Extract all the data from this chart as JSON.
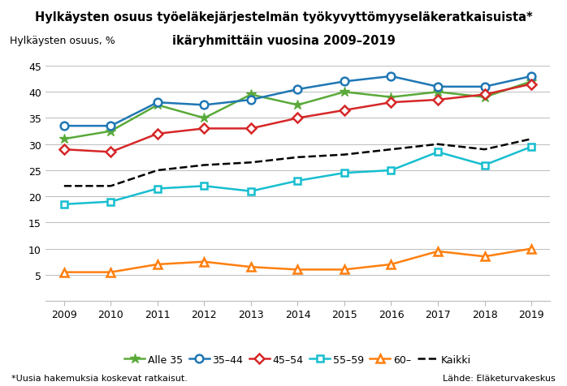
{
  "title_line1": "Hylkäysten osuus työeläkejärjestelmän työkyvyttömyyseläkeratkaisuista*",
  "title_line2": "ikäryhmittäin vuosina 2009–2019",
  "ylabel": "Hylkäysten osuus, %",
  "footnote": "*Uusia hakemuksia koskevat ratkaisut.",
  "source": "Lähde: Eläketurvakeskus",
  "years": [
    2009,
    2010,
    2011,
    2012,
    2013,
    2014,
    2015,
    2016,
    2017,
    2018,
    2019
  ],
  "alle35": [
    31,
    32.5,
    37.5,
    35,
    39.5,
    37.5,
    40,
    39,
    40,
    39,
    42
  ],
  "s3544": [
    33.5,
    33.5,
    38,
    37.5,
    38.5,
    40.5,
    42,
    43,
    41,
    41,
    43
  ],
  "s4554": [
    29,
    28.5,
    32,
    33,
    33,
    35,
    36.5,
    38,
    38.5,
    39.5,
    41.5
  ],
  "s5559": [
    18.5,
    19,
    21.5,
    22,
    21,
    23,
    24.5,
    25,
    28.5,
    26,
    29.5
  ],
  "s60": [
    5.5,
    5.5,
    7,
    7.5,
    6.5,
    6,
    6,
    7,
    9.5,
    8.5,
    10
  ],
  "kaikki": [
    22,
    22,
    25,
    26,
    26.5,
    27.5,
    28,
    29,
    30,
    29,
    31
  ],
  "color_alle35": "#5AAA3A",
  "color_3544": "#1F77B4",
  "color_4554": "#D62728",
  "color_5559": "#17BECF",
  "color_60": "#FF7F0E",
  "color_kaikki": "#000000",
  "ylim": [
    0,
    47
  ],
  "yticks": [
    5,
    10,
    15,
    20,
    25,
    30,
    35,
    40,
    45
  ],
  "background_color": "#ffffff"
}
